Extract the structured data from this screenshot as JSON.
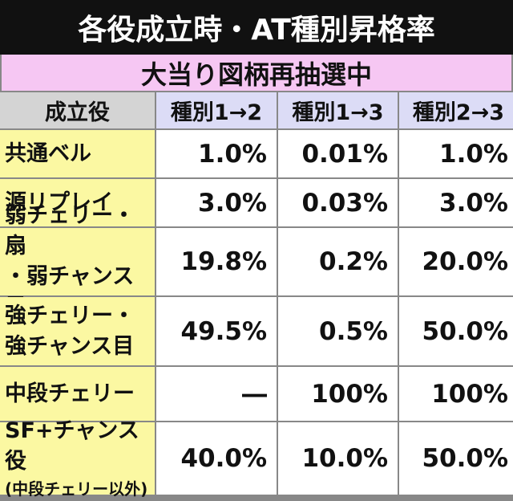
{
  "header": {
    "title": "各役成立時・AT種別昇格率",
    "subtitle": "大当り図柄再抽選中"
  },
  "table": {
    "columns": [
      "成立役",
      "種別1→2",
      "種別1→3",
      "種別2→3"
    ],
    "rows": [
      {
        "label": [
          "共通ベル"
        ],
        "cells": [
          "1.0%",
          "0.01%",
          "1.0%"
        ]
      },
      {
        "label": [
          "源リプレイ"
        ],
        "cells": [
          "3.0%",
          "0.03%",
          "3.0%"
        ]
      },
      {
        "label": [
          "弱チェリー・扇",
          "・弱チャンス目"
        ],
        "cells": [
          "19.8%",
          "0.2%",
          "20.0%"
        ]
      },
      {
        "label": [
          "強チェリー・",
          "強チャンス目"
        ],
        "cells": [
          "49.5%",
          "0.5%",
          "50.0%"
        ]
      },
      {
        "label": [
          "中段チェリー"
        ],
        "cells": [
          "―",
          "100%",
          "100%"
        ]
      },
      {
        "label": [
          "SF+チャンス役",
          "(中段チェリー以外)"
        ],
        "cells": [
          "40.0%",
          "10.0%",
          "50.0%"
        ]
      }
    ]
  }
}
